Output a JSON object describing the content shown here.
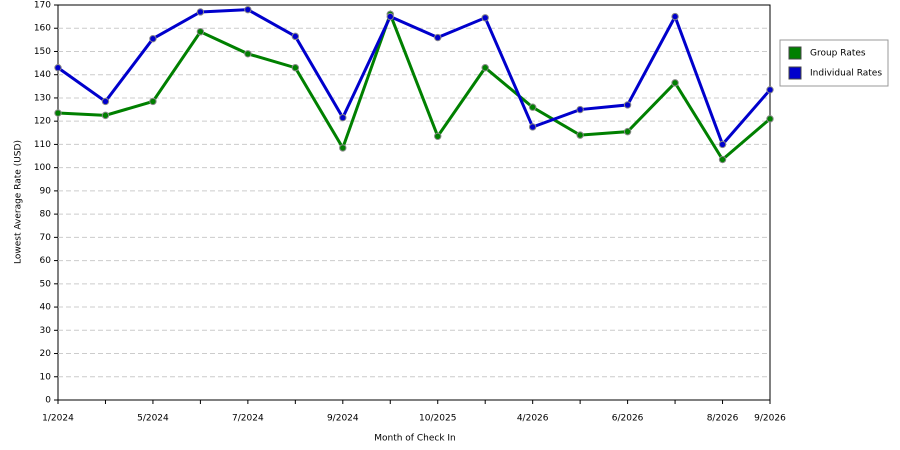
{
  "chart_data": {
    "type": "line",
    "x_label": "Month of Check In",
    "y_label": "Lowest Average Rate (USD)",
    "categories": [
      "1/2024",
      null,
      "5/2024",
      null,
      "7/2024",
      null,
      "9/2024",
      null,
      "10/2025",
      null,
      "4/2026",
      null,
      "6/2026",
      null,
      "8/2026",
      "9/2026"
    ],
    "series": [
      {
        "name": "Group Rates",
        "color": "#008000",
        "values": [
          123.5,
          122.5,
          128.5,
          158.5,
          149,
          143,
          108.5,
          166,
          113.5,
          143,
          126,
          114,
          115.5,
          136.5,
          103.5,
          121
        ]
      },
      {
        "name": "Individual Rates",
        "color": "#0000cc",
        "values": [
          143,
          128.5,
          155.5,
          167,
          168,
          156.5,
          121.5,
          165,
          156,
          164.5,
          117.5,
          125,
          127,
          165,
          110,
          133.5
        ]
      }
    ],
    "ylim": [
      0,
      170
    ],
    "yticks": [
      0,
      10,
      20,
      30,
      40,
      50,
      60,
      70,
      80,
      90,
      100,
      110,
      120,
      130,
      140,
      150,
      160,
      170
    ],
    "grid": true,
    "legend": "right"
  }
}
